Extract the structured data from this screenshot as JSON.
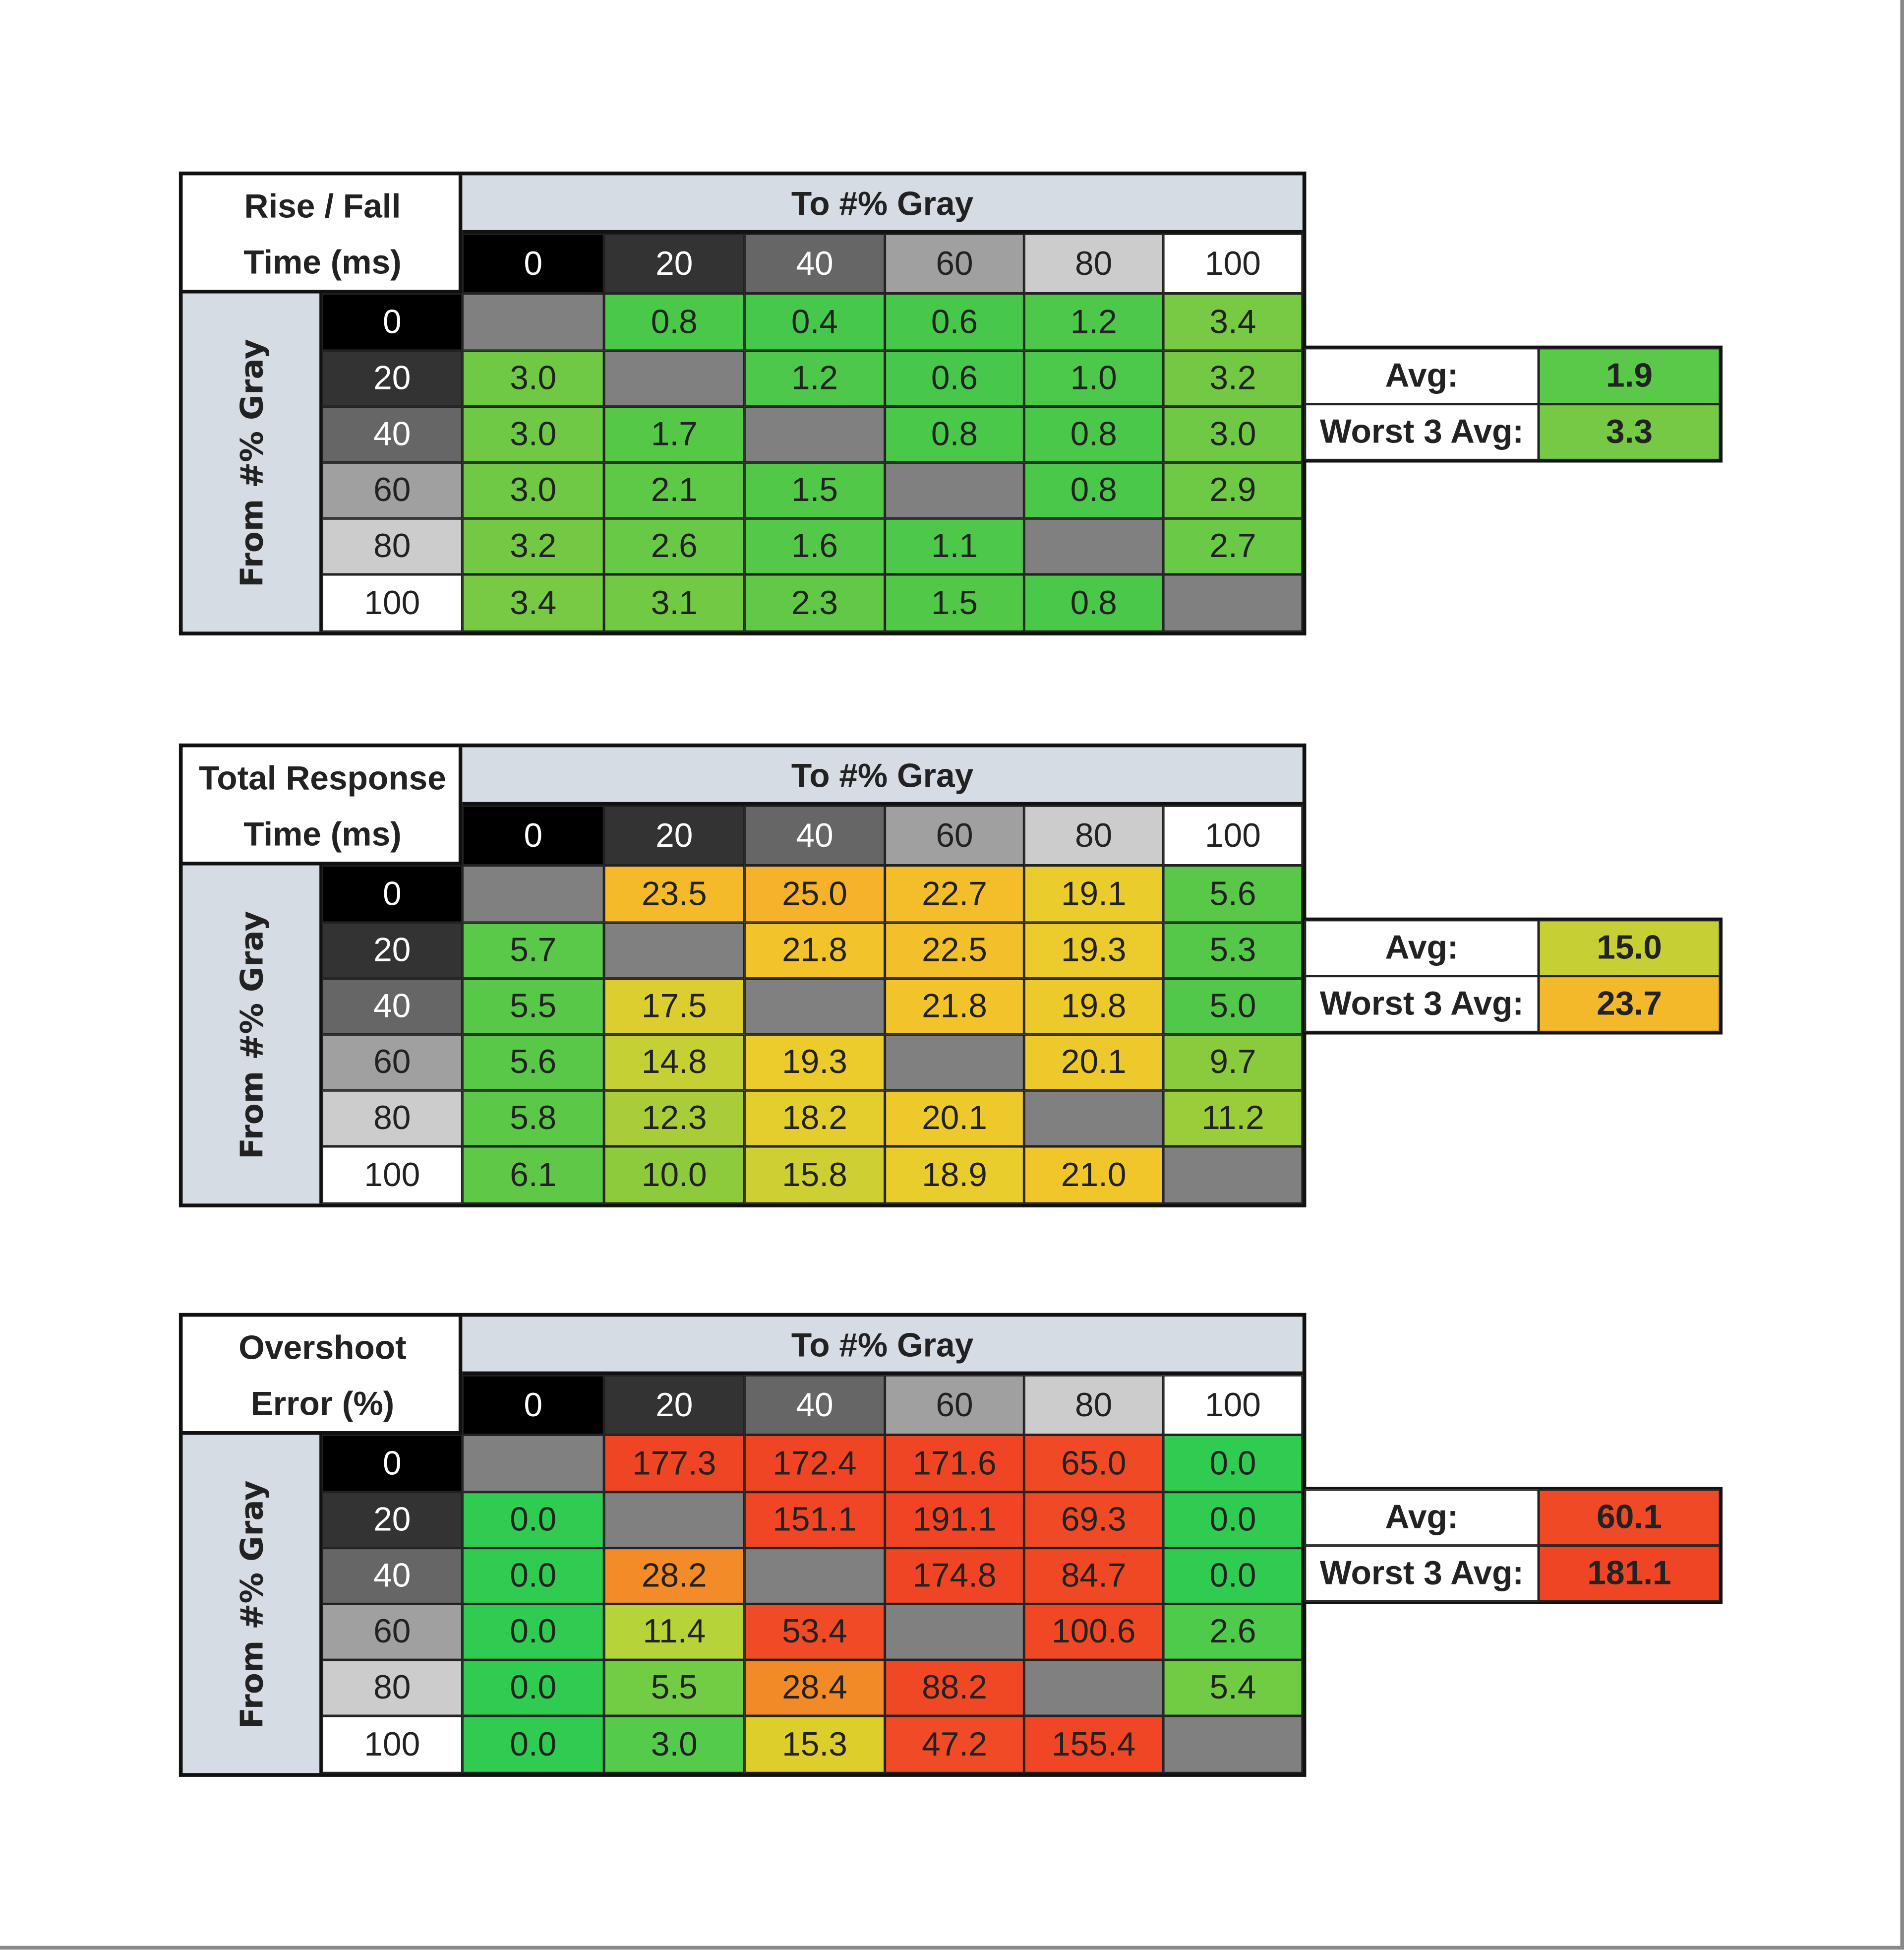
{
  "tables": [
    {
      "title_lines": [
        "Rise / Fall",
        "Time (ms)"
      ],
      "to_label": "To #% Gray",
      "from_label": "From #% Gray",
      "col_headers": [
        "0",
        "20",
        "40",
        "60",
        "80",
        "100"
      ],
      "row_headers": [
        "0",
        "20",
        "40",
        "60",
        "80",
        "100"
      ],
      "values": [
        [
          null,
          "0.8",
          "0.4",
          "0.6",
          "1.2",
          "3.4"
        ],
        [
          "3.0",
          null,
          "1.2",
          "0.6",
          "1.0",
          "3.2"
        ],
        [
          "3.0",
          "1.7",
          null,
          "0.8",
          "0.8",
          "3.0"
        ],
        [
          "3.0",
          "2.1",
          "1.5",
          null,
          "0.8",
          "2.9"
        ],
        [
          "3.2",
          "2.6",
          "1.6",
          "1.1",
          null,
          "2.7"
        ],
        [
          "3.4",
          "3.1",
          "2.3",
          "1.5",
          "0.8",
          null
        ]
      ],
      "avg_label": "Avg:",
      "avg_value": "1.9",
      "worst_label": "Worst 3 Avg:",
      "worst_value": "3.3",
      "color_stops": [
        [
          0,
          "#40c84c"
        ],
        [
          1.5,
          "#52c849"
        ],
        [
          3.5,
          "#7ac943"
        ]
      ]
    },
    {
      "title_lines": [
        "Total Response",
        "Time (ms)"
      ],
      "to_label": "To #% Gray",
      "from_label": "From #% Gray",
      "col_headers": [
        "0",
        "20",
        "40",
        "60",
        "80",
        "100"
      ],
      "row_headers": [
        "0",
        "20",
        "40",
        "60",
        "80",
        "100"
      ],
      "values": [
        [
          null,
          "23.5",
          "25.0",
          "22.7",
          "19.1",
          "5.6"
        ],
        [
          "5.7",
          null,
          "21.8",
          "22.5",
          "19.3",
          "5.3"
        ],
        [
          "5.5",
          "17.5",
          null,
          "21.8",
          "19.8",
          "5.0"
        ],
        [
          "5.6",
          "14.8",
          "19.3",
          null,
          "20.1",
          "9.7"
        ],
        [
          "5.8",
          "12.3",
          "18.2",
          "20.1",
          null,
          "11.2"
        ],
        [
          "6.1",
          "10.0",
          "15.8",
          "18.9",
          "21.0",
          null
        ]
      ],
      "avg_label": "Avg:",
      "avg_value": "15.0",
      "worst_label": "Worst 3 Avg:",
      "worst_value": "23.7",
      "color_stops": [
        [
          5,
          "#52c84a"
        ],
        [
          10,
          "#8ecb3c"
        ],
        [
          15,
          "#c6d034"
        ],
        [
          19,
          "#eacd2c"
        ],
        [
          22,
          "#f3c22a"
        ],
        [
          25,
          "#f5b22a"
        ]
      ]
    },
    {
      "title_lines": [
        "Overshoot",
        "Error (%)"
      ],
      "to_label": "To #% Gray",
      "from_label": "From #% Gray",
      "col_headers": [
        "0",
        "20",
        "40",
        "60",
        "80",
        "100"
      ],
      "row_headers": [
        "0",
        "20",
        "40",
        "60",
        "80",
        "100"
      ],
      "values": [
        [
          null,
          "177.3",
          "172.4",
          "171.6",
          "65.0",
          "0.0"
        ],
        [
          "0.0",
          null,
          "151.1",
          "191.1",
          "69.3",
          "0.0"
        ],
        [
          "0.0",
          "28.2",
          null,
          "174.8",
          "84.7",
          "0.0"
        ],
        [
          "0.0",
          "11.4",
          "53.4",
          null,
          "100.6",
          "2.6"
        ],
        [
          "0.0",
          "5.5",
          "28.4",
          "88.2",
          null,
          "5.4"
        ],
        [
          "0.0",
          "3.0",
          "15.3",
          "47.2",
          "155.4",
          null
        ]
      ],
      "avg_label": "Avg:",
      "avg_value": "60.1",
      "worst_label": "Worst 3 Avg:",
      "worst_value": "181.1",
      "color_stops": [
        [
          0,
          "#30cc52"
        ],
        [
          5,
          "#6ccb45"
        ],
        [
          11,
          "#b2d33a"
        ],
        [
          15,
          "#dcd02c"
        ],
        [
          28,
          "#f28c28"
        ],
        [
          45,
          "#f04a26"
        ],
        [
          200,
          "#f04424"
        ]
      ]
    }
  ],
  "chart_data": [
    {
      "type": "heatmap",
      "title": "Rise / Fall Time (ms)",
      "xlabel": "To #% Gray",
      "ylabel": "From #% Gray",
      "x": [
        0,
        20,
        40,
        60,
        80,
        100
      ],
      "y": [
        0,
        20,
        40,
        60,
        80,
        100
      ],
      "values": [
        [
          null,
          0.8,
          0.4,
          0.6,
          1.2,
          3.4
        ],
        [
          3.0,
          null,
          1.2,
          0.6,
          1.0,
          3.2
        ],
        [
          3.0,
          1.7,
          null,
          0.8,
          0.8,
          3.0
        ],
        [
          3.0,
          2.1,
          1.5,
          null,
          0.8,
          2.9
        ],
        [
          3.2,
          2.6,
          1.6,
          1.1,
          null,
          2.7
        ],
        [
          3.4,
          3.1,
          2.3,
          1.5,
          0.8,
          null
        ]
      ],
      "avg": 1.9,
      "worst_3_avg": 3.3
    },
    {
      "type": "heatmap",
      "title": "Total Response Time (ms)",
      "xlabel": "To #% Gray",
      "ylabel": "From #% Gray",
      "x": [
        0,
        20,
        40,
        60,
        80,
        100
      ],
      "y": [
        0,
        20,
        40,
        60,
        80,
        100
      ],
      "values": [
        [
          null,
          23.5,
          25.0,
          22.7,
          19.1,
          5.6
        ],
        [
          5.7,
          null,
          21.8,
          22.5,
          19.3,
          5.3
        ],
        [
          5.5,
          17.5,
          null,
          21.8,
          19.8,
          5.0
        ],
        [
          5.6,
          14.8,
          19.3,
          null,
          20.1,
          9.7
        ],
        [
          5.8,
          12.3,
          18.2,
          20.1,
          null,
          11.2
        ],
        [
          6.1,
          10.0,
          15.8,
          18.9,
          21.0,
          null
        ]
      ],
      "avg": 15.0,
      "worst_3_avg": 23.7
    },
    {
      "type": "heatmap",
      "title": "Overshoot Error (%)",
      "xlabel": "To #% Gray",
      "ylabel": "From #% Gray",
      "x": [
        0,
        20,
        40,
        60,
        80,
        100
      ],
      "y": [
        0,
        20,
        40,
        60,
        80,
        100
      ],
      "values": [
        [
          null,
          177.3,
          172.4,
          171.6,
          65.0,
          0.0
        ],
        [
          0.0,
          null,
          151.1,
          191.1,
          69.3,
          0.0
        ],
        [
          0.0,
          28.2,
          null,
          174.8,
          84.7,
          0.0
        ],
        [
          0.0,
          11.4,
          53.4,
          null,
          100.6,
          2.6
        ],
        [
          0.0,
          5.5,
          28.4,
          88.2,
          null,
          5.4
        ],
        [
          0.0,
          3.0,
          15.3,
          47.2,
          155.4,
          null
        ]
      ],
      "avg": 60.1,
      "worst_3_avg": 181.1
    }
  ],
  "gray_level_colors": [
    "#000000",
    "#333333",
    "#666666",
    "#a0a0a0",
    "#cccccc",
    "#ffffff"
  ],
  "diagonal_color": "#808080",
  "label_background": "#d6dce4"
}
